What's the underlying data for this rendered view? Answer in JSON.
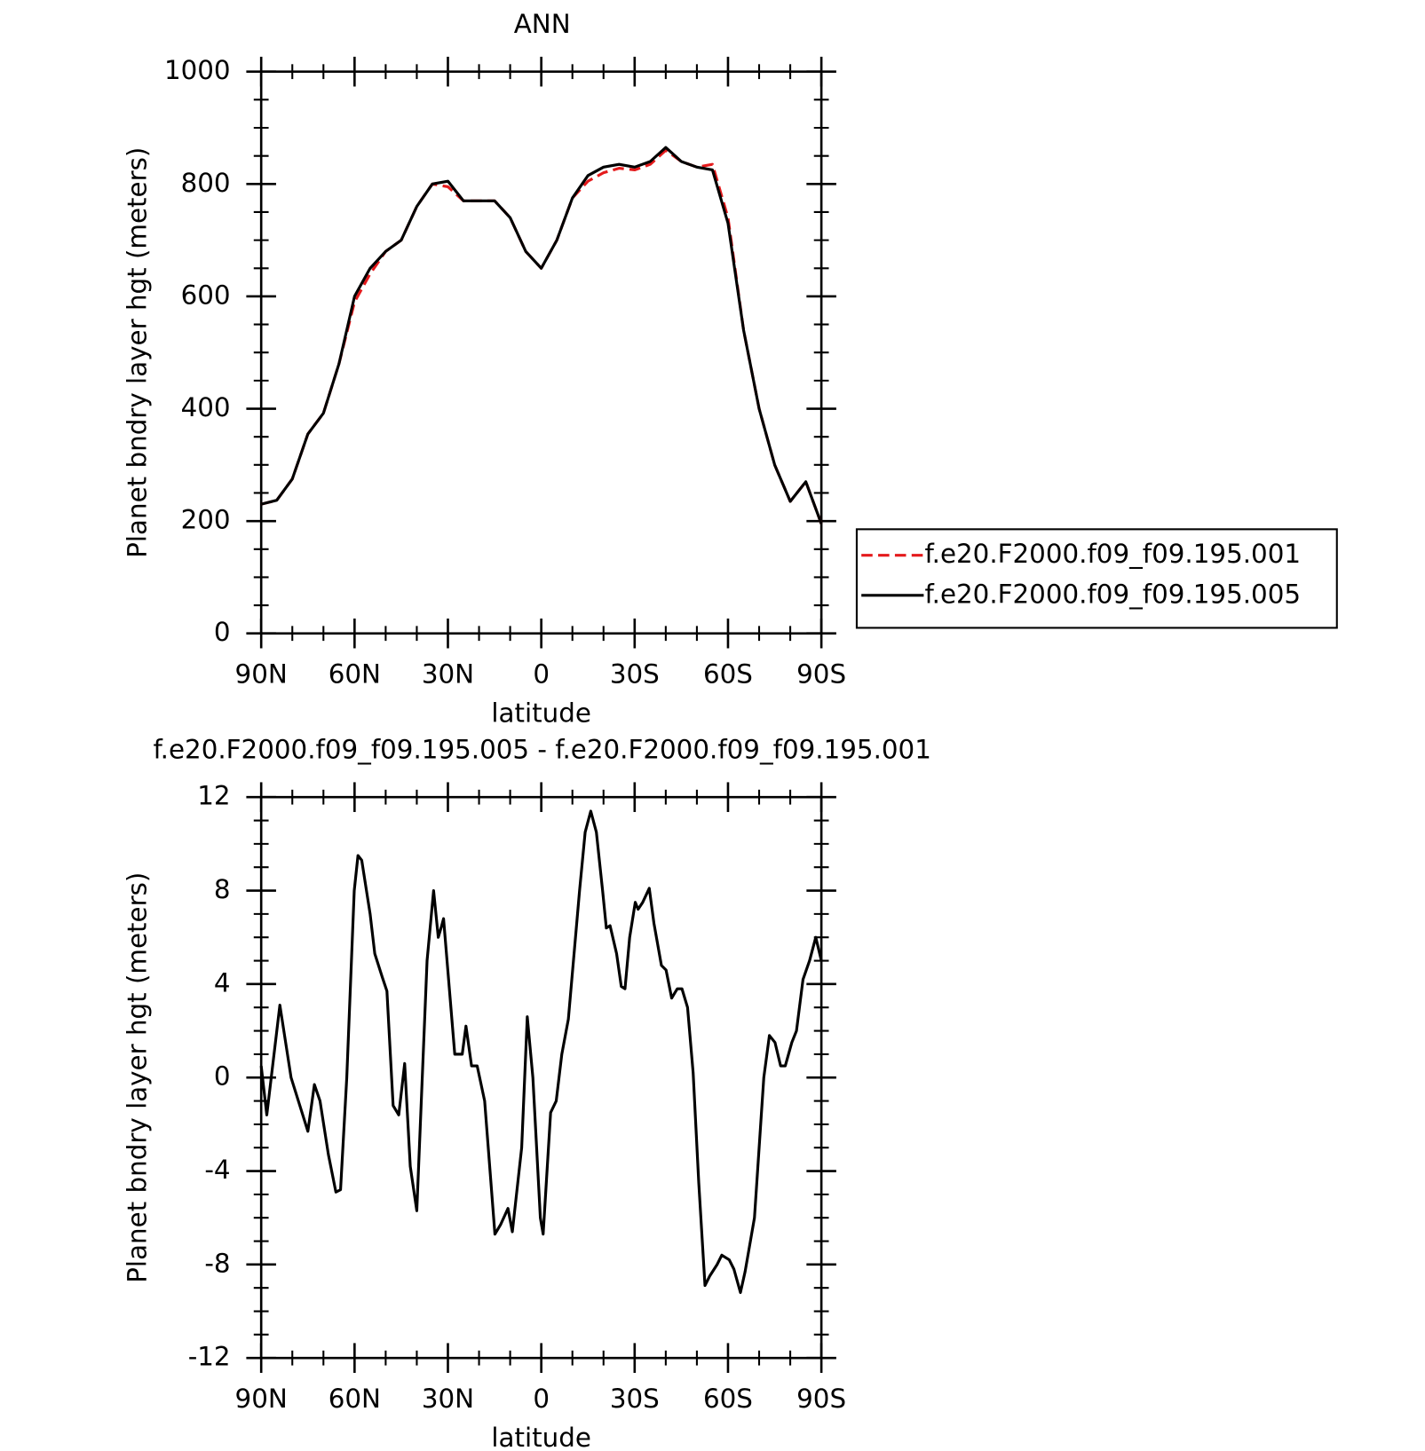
{
  "chart_data": [
    {
      "type": "line",
      "title": "ANN",
      "x_label": "latitude",
      "y_label": "Planet bndry layer hgt (meters)",
      "x": [
        90,
        85,
        80,
        75,
        70,
        65,
        60,
        55,
        50,
        45,
        40,
        35,
        30,
        25,
        20,
        15,
        10,
        5,
        0,
        -5,
        -10,
        -15,
        -20,
        -25,
        -30,
        -35,
        -40,
        -45,
        -50,
        -55,
        -60,
        -65,
        -70,
        -75,
        -80,
        -85,
        -90
      ],
      "series": [
        {
          "name": "f.e20.F2000.f09_f09.195.001",
          "color": "#e41a1c",
          "dashed": true,
          "values": [
            230,
            237,
            275,
            355,
            392,
            480,
            590,
            640,
            680,
            700,
            760,
            800,
            795,
            770,
            770,
            770,
            740,
            680,
            650,
            700,
            775,
            805,
            820,
            828,
            825,
            835,
            860,
            840,
            830,
            835,
            740,
            540,
            400,
            300,
            235,
            270,
            195
          ]
        },
        {
          "name": "f.e20.F2000.f09_f09.195.005",
          "color": "#000000",
          "dashed": false,
          "values": [
            230,
            237,
            275,
            355,
            392,
            480,
            600,
            650,
            680,
            700,
            760,
            800,
            805,
            770,
            770,
            770,
            740,
            680,
            650,
            700,
            775,
            815,
            830,
            835,
            830,
            840,
            865,
            840,
            830,
            825,
            730,
            540,
            400,
            300,
            235,
            270,
            195
          ]
        }
      ],
      "xlim": [
        90,
        -90
      ],
      "xticks": [
        {
          "value": 90,
          "label": "90N"
        },
        {
          "value": 60,
          "label": "60N"
        },
        {
          "value": 30,
          "label": "30N"
        },
        0,
        {
          "value": -30,
          "label": "30S"
        },
        {
          "value": -60,
          "label": "60S"
        },
        {
          "value": -90,
          "label": "90S"
        }
      ],
      "ylim": [
        0,
        1000
      ],
      "yticks": [
        0,
        200,
        400,
        600,
        800,
        1000
      ],
      "legend": "right"
    },
    {
      "type": "line",
      "title": "f.e20.F2000.f09_f09.195.005 - f.e20.F2000.f09_f09.195.001",
      "x_label": "latitude",
      "y_label": "Planet bndry layer hgt (meters)",
      "x": [
        90,
        88.2,
        84.0,
        80.4,
        75.0,
        72.9,
        71.1,
        68.4,
        66.0,
        64.5,
        62.5,
        60.1,
        58.9,
        57.7,
        55.0,
        53.5,
        51.1,
        49.6,
        47.6,
        45.8,
        43.9,
        42.1,
        40.0,
        36.7,
        34.6,
        33.1,
        32.0,
        31.4,
        27.8,
        25.4,
        24.2,
        22.4,
        20.6,
        18.2,
        14.9,
        13.1,
        10.7,
        9.3,
        6.3,
        4.5,
        2.7,
        0.3,
        -0.6,
        -3.0,
        -4.8,
        -6.6,
        -8.7,
        -12.3,
        -14.1,
        -15.9,
        -17.7,
        -19.7,
        -20.9,
        -22.1,
        -24.2,
        -25.7,
        -26.9,
        -28.4,
        -30.2,
        -31.1,
        -32.6,
        -34.7,
        -36.2,
        -38.6,
        -40.1,
        -41.9,
        -43.7,
        -45.2,
        -47.0,
        -48.8,
        -50.6,
        -52.6,
        -54.1,
        -56.5,
        -58.0,
        -60.4,
        -61.9,
        -64.0,
        -65.5,
        -68.5,
        -71.5,
        -73.3,
        -75.1,
        -76.9,
        -78.4,
        -80.5,
        -82.0,
        -84.1,
        -86.2,
        -88.2,
        -90
      ],
      "series": [
        {
          "color": "#000000",
          "dashed": false,
          "values": [
            0.5,
            -1.6,
            3.1,
            0,
            -2.3,
            -0.3,
            -1,
            -3.3,
            -4.9,
            -4.8,
            0,
            8,
            9.5,
            9.3,
            7,
            5.3,
            4.3,
            3.7,
            -1.2,
            -1.6,
            0.6,
            -3.8,
            -5.7,
            5,
            8,
            6,
            6.5,
            6.8,
            1,
            1,
            2.2,
            0.5,
            0.5,
            -1,
            -6.7,
            -6.3,
            -5.6,
            -6.6,
            -3,
            2.6,
            0,
            -6,
            -6.7,
            -1.5,
            -1,
            1,
            2.5,
            8,
            10.5,
            11.4,
            10.5,
            8,
            6.4,
            6.5,
            5.3,
            3.9,
            3.8,
            6,
            7.5,
            7.2,
            7.5,
            8.1,
            6.6,
            4.8,
            4.6,
            3.4,
            3.8,
            3.8,
            3,
            0.2,
            -4.5,
            -8.9,
            -8.5,
            -8,
            -7.6,
            -7.8,
            -8.2,
            -9.2,
            -8.3,
            -6,
            0,
            1.8,
            1.5,
            0.5,
            0.5,
            1.5,
            2,
            4.2,
            5,
            6,
            5
          ]
        }
      ],
      "xlim": [
        90,
        -90
      ],
      "xticks": [
        {
          "value": 90,
          "label": "90N"
        },
        {
          "value": 60,
          "label": "60N"
        },
        {
          "value": 30,
          "label": "30N"
        },
        0,
        {
          "value": -30,
          "label": "30S"
        },
        {
          "value": -60,
          "label": "60S"
        },
        {
          "value": -90,
          "label": "90S"
        }
      ],
      "ylim": [
        -12,
        12
      ],
      "yticks": [
        -12,
        -8,
        -4,
        0,
        4,
        8,
        12
      ]
    }
  ]
}
